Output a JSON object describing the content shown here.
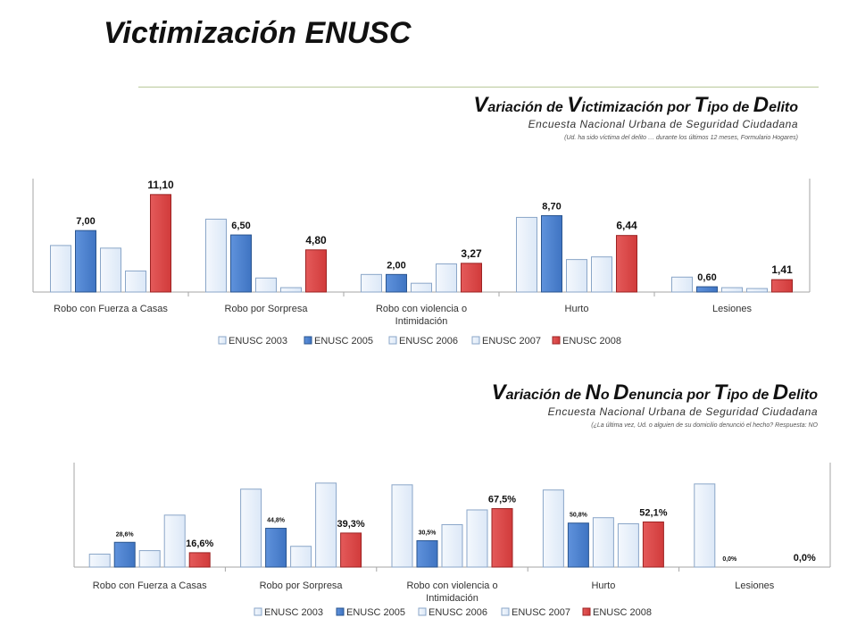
{
  "page": {
    "title": "Victimización ENUSC"
  },
  "charts_text": [
    {
      "heading_segments": [
        {
          "t": "V",
          "big": true
        },
        {
          "t": "ariación de ",
          "big": false
        },
        {
          "t": "V",
          "big": true
        },
        {
          "t": "ictimización por ",
          "big": false
        },
        {
          "t": "T",
          "big": true
        },
        {
          "t": "ipo de ",
          "big": false
        },
        {
          "t": "D",
          "big": true
        },
        {
          "t": "elito",
          "big": false
        }
      ],
      "subtitle": "Encuesta Nacional Urbana de Seguridad Ciudadana",
      "note": "(Ud. ha sido víctima del delito … durante los últimos 12 meses, Formulario Hogares)"
    },
    {
      "heading_segments": [
        {
          "t": "V",
          "big": true
        },
        {
          "t": "ariación de ",
          "big": false
        },
        {
          "t": "N",
          "big": true
        },
        {
          "t": "o ",
          "big": false
        },
        {
          "t": "D",
          "big": true
        },
        {
          "t": "enuncia por ",
          "big": false
        },
        {
          "t": "T",
          "big": true
        },
        {
          "t": "ipo de ",
          "big": false
        },
        {
          "t": "D",
          "big": true
        },
        {
          "t": "elito",
          "big": false
        }
      ],
      "subtitle": "Encuesta Nacional Urbana de Seguridad Ciudadana",
      "note": "(¿La última vez, Ud. o alguien de su domicilio denunció el hecho? Respuesta: NO"
    }
  ],
  "colors": {
    "light_bar": "#dce8f7",
    "light_bar_stroke": "#8aa6c8",
    "blue_bar": "#3f74c2",
    "blue_bar_stroke": "#2a558f",
    "red_bar": "#d13b3b",
    "red_bar_stroke": "#9c2323",
    "axis": "#a6a6a6"
  },
  "chart_data": [
    {
      "type": "bar",
      "categories": [
        "Robo con Fuerza a Casas",
        "Robo por Sorpresa",
        "Robo con violencia o Intimidación",
        "Hurto",
        "Lesiones"
      ],
      "series": [
        {
          "name": "ENUSC 2003",
          "values": [
            5.3,
            8.3,
            2.0,
            8.5,
            1.7
          ]
        },
        {
          "name": "ENUSC 2005",
          "values": [
            7.0,
            6.5,
            2.0,
            8.7,
            0.6
          ]
        },
        {
          "name": "ENUSC 2006",
          "values": [
            5.0,
            1.6,
            1.0,
            3.7,
            0.5
          ]
        },
        {
          "name": "ENUSC 2007",
          "values": [
            2.4,
            0.5,
            3.2,
            4.0,
            0.4
          ]
        },
        {
          "name": "ENUSC 2008",
          "values": [
            11.1,
            4.8,
            3.27,
            6.44,
            1.41
          ]
        }
      ],
      "data_labels": [
        {
          "series": 1,
          "labels": [
            "7,00",
            "6,50",
            "2,00",
            "8,70",
            "0,60"
          ]
        },
        {
          "series": 4,
          "labels": [
            "11,10",
            "4,80",
            "3,27",
            "6,44",
            "1,41"
          ]
        }
      ],
      "ylim": [
        0,
        12
      ],
      "legend": "bottom"
    },
    {
      "type": "bar",
      "categories": [
        "Robo con Fuerza a Casas",
        "Robo por Sorpresa",
        "Robo con violencia o Intimidación",
        "Hurto",
        "Lesiones"
      ],
      "series": [
        {
          "name": "ENUSC 2003",
          "values": [
            15,
            90,
            95,
            89,
            96
          ]
        },
        {
          "name": "ENUSC 2005",
          "values": [
            28.6,
            44.8,
            30.5,
            50.8,
            0.0
          ]
        },
        {
          "name": "ENUSC 2006",
          "values": [
            19,
            24,
            49,
            57,
            0
          ]
        },
        {
          "name": "ENUSC 2007",
          "values": [
            60,
            97,
            66,
            50,
            0
          ]
        },
        {
          "name": "ENUSC 2008",
          "values": [
            16.6,
            39.3,
            67.5,
            52.1,
            0.0
          ]
        }
      ],
      "data_labels": [
        {
          "series": 1,
          "labels": [
            "28,6%",
            "44,8%",
            "30,5%",
            "50,8%",
            "0,0%"
          ]
        },
        {
          "series": 4,
          "labels": [
            "16,6%",
            "39,3%",
            "67,5%",
            "52,1%",
            "0,0%"
          ]
        }
      ],
      "ylim": [
        0,
        100
      ],
      "legend": "bottom"
    }
  ]
}
